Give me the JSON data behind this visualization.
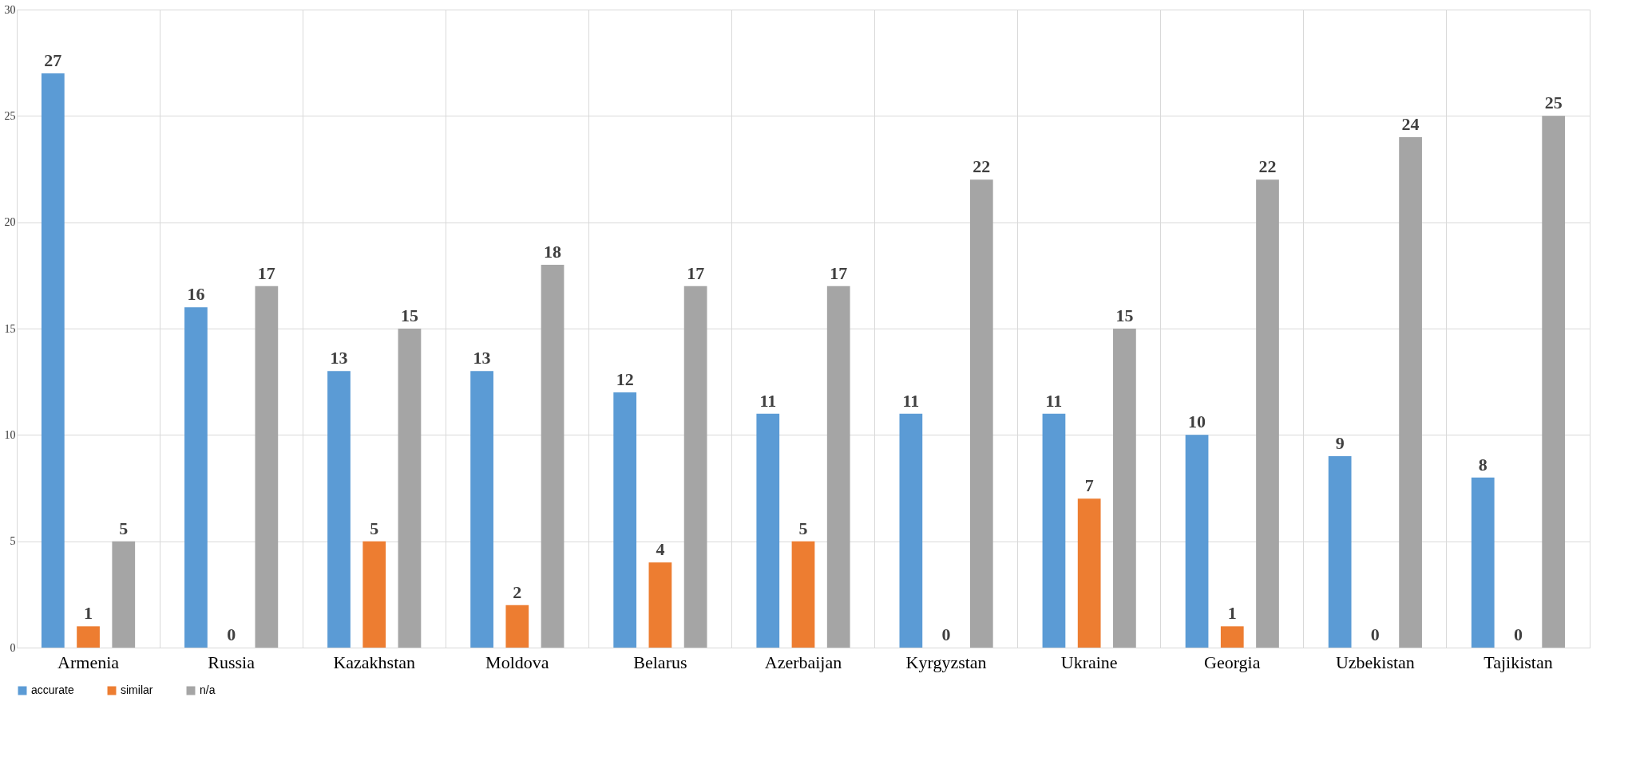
{
  "chart_data": {
    "type": "bar",
    "categories": [
      "Armenia",
      "Russia",
      "Kazakhstan",
      "Moldova",
      "Belarus",
      "Azerbaijan",
      "Kyrgyzstan",
      "Ukraine",
      "Georgia",
      "Uzbekistan",
      "Tajikistan"
    ],
    "series": [
      {
        "name": "accurate",
        "color": "#5b9bd5",
        "values": [
          27,
          16,
          13,
          13,
          12,
          11,
          11,
          11,
          10,
          9,
          8
        ]
      },
      {
        "name": "similar",
        "color": "#ed7d31",
        "values": [
          1,
          0,
          5,
          2,
          4,
          5,
          0,
          7,
          1,
          0,
          0
        ]
      },
      {
        "name": "n/a",
        "color": "#a5a5a5",
        "values": [
          5,
          17,
          15,
          18,
          17,
          17,
          22,
          15,
          22,
          24,
          25
        ]
      }
    ],
    "ylim": [
      0,
      30
    ],
    "yticks": [
      0,
      5,
      10,
      15,
      20,
      25,
      30
    ],
    "grid": true,
    "legend": "bottom",
    "data_labels": true
  }
}
